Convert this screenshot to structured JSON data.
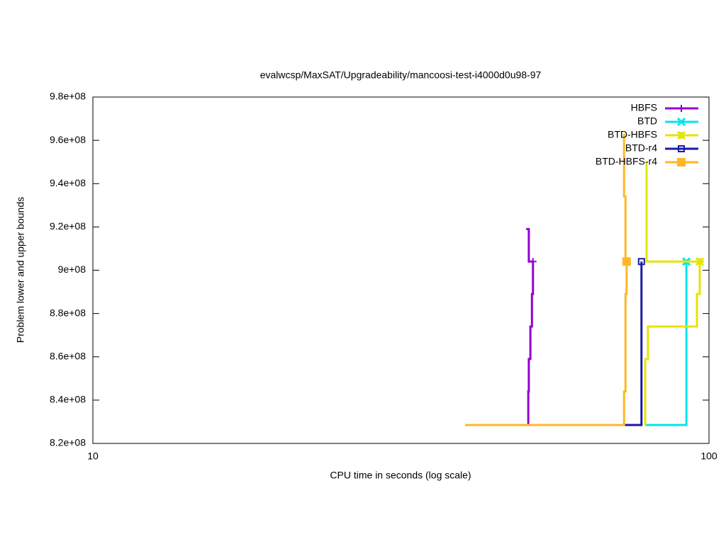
{
  "chart_data": {
    "type": "line",
    "title": "evalwcsp/MaxSAT/Upgradeability/mancoosi-test-i4000d0u98-97",
    "x_label": "CPU time in seconds (log scale)",
    "y_label": "Problem lower and upper bounds",
    "xscale": "log",
    "xlim": [
      10,
      100
    ],
    "xticks": [
      10,
      100
    ],
    "ylim": [
      820000000,
      980000000
    ],
    "yticks": [
      {
        "value": 820000000,
        "label": "8.2e+08"
      },
      {
        "value": 840000000,
        "label": "8.4e+08"
      },
      {
        "value": 860000000,
        "label": "8.6e+08"
      },
      {
        "value": 880000000,
        "label": "8.8e+08"
      },
      {
        "value": 900000000,
        "label": "9e+08"
      },
      {
        "value": 920000000,
        "label": "9.2e+08"
      },
      {
        "value": 940000000,
        "label": "9.4e+08"
      },
      {
        "value": 960000000,
        "label": "9.6e+08"
      },
      {
        "value": 980000000,
        "label": "9.8e+08"
      }
    ],
    "legend": "top-right",
    "series": [
      {
        "name": "HBFS",
        "color": "#9400d3",
        "marker": "plus",
        "x": [
          50.5,
          51.0,
          51.0,
          51.8,
          null,
          50.9,
          50.9,
          51.0,
          51.0,
          51.3,
          51.3,
          51.6,
          51.6,
          51.8,
          51.8
        ],
        "values": [
          919000000,
          919000000,
          904000000,
          904000000,
          null,
          828500000,
          844000000,
          844000000,
          859000000,
          859000000,
          874000000,
          874000000,
          889000000,
          889000000,
          904000000
        ]
      },
      {
        "name": "BTD",
        "color": "#00e5ee",
        "marker": "cross",
        "x": [
          78.8,
          91.9,
          91.9
        ],
        "values": [
          828500000,
          828500000,
          904000000
        ]
      },
      {
        "name": "BTD-HBFS",
        "color": "#e5e500",
        "marker": "star",
        "x": [
          79.2,
          79.2,
          98.2,
          null,
          78.8,
          78.8,
          79.6,
          79.6,
          95.6,
          95.6,
          96.6,
          96.6
        ],
        "values": [
          950000000,
          904000000,
          904000000,
          null,
          828500000,
          859000000,
          859000000,
          874000000,
          874000000,
          889000000,
          889000000,
          904000000
        ]
      },
      {
        "name": "BTD-r4",
        "color": "#1a1aa6",
        "marker": "open-square",
        "x": [
          72.8,
          77.7,
          77.7
        ],
        "values": [
          828500000,
          828500000,
          904000000
        ]
      },
      {
        "name": "BTD-HBFS-r4",
        "color": "#ffb726",
        "marker": "filled-square",
        "x": [
          72.8,
          72.8,
          73.2,
          73.2,
          73.5,
          null,
          40.2,
          72.8,
          72.8,
          73.2,
          73.2,
          73.5,
          73.5
        ],
        "values": [
          963000000,
          934000000,
          934000000,
          904000000,
          904000000,
          null,
          828500000,
          828500000,
          844000000,
          844000000,
          889000000,
          889000000,
          904000000
        ]
      }
    ]
  }
}
